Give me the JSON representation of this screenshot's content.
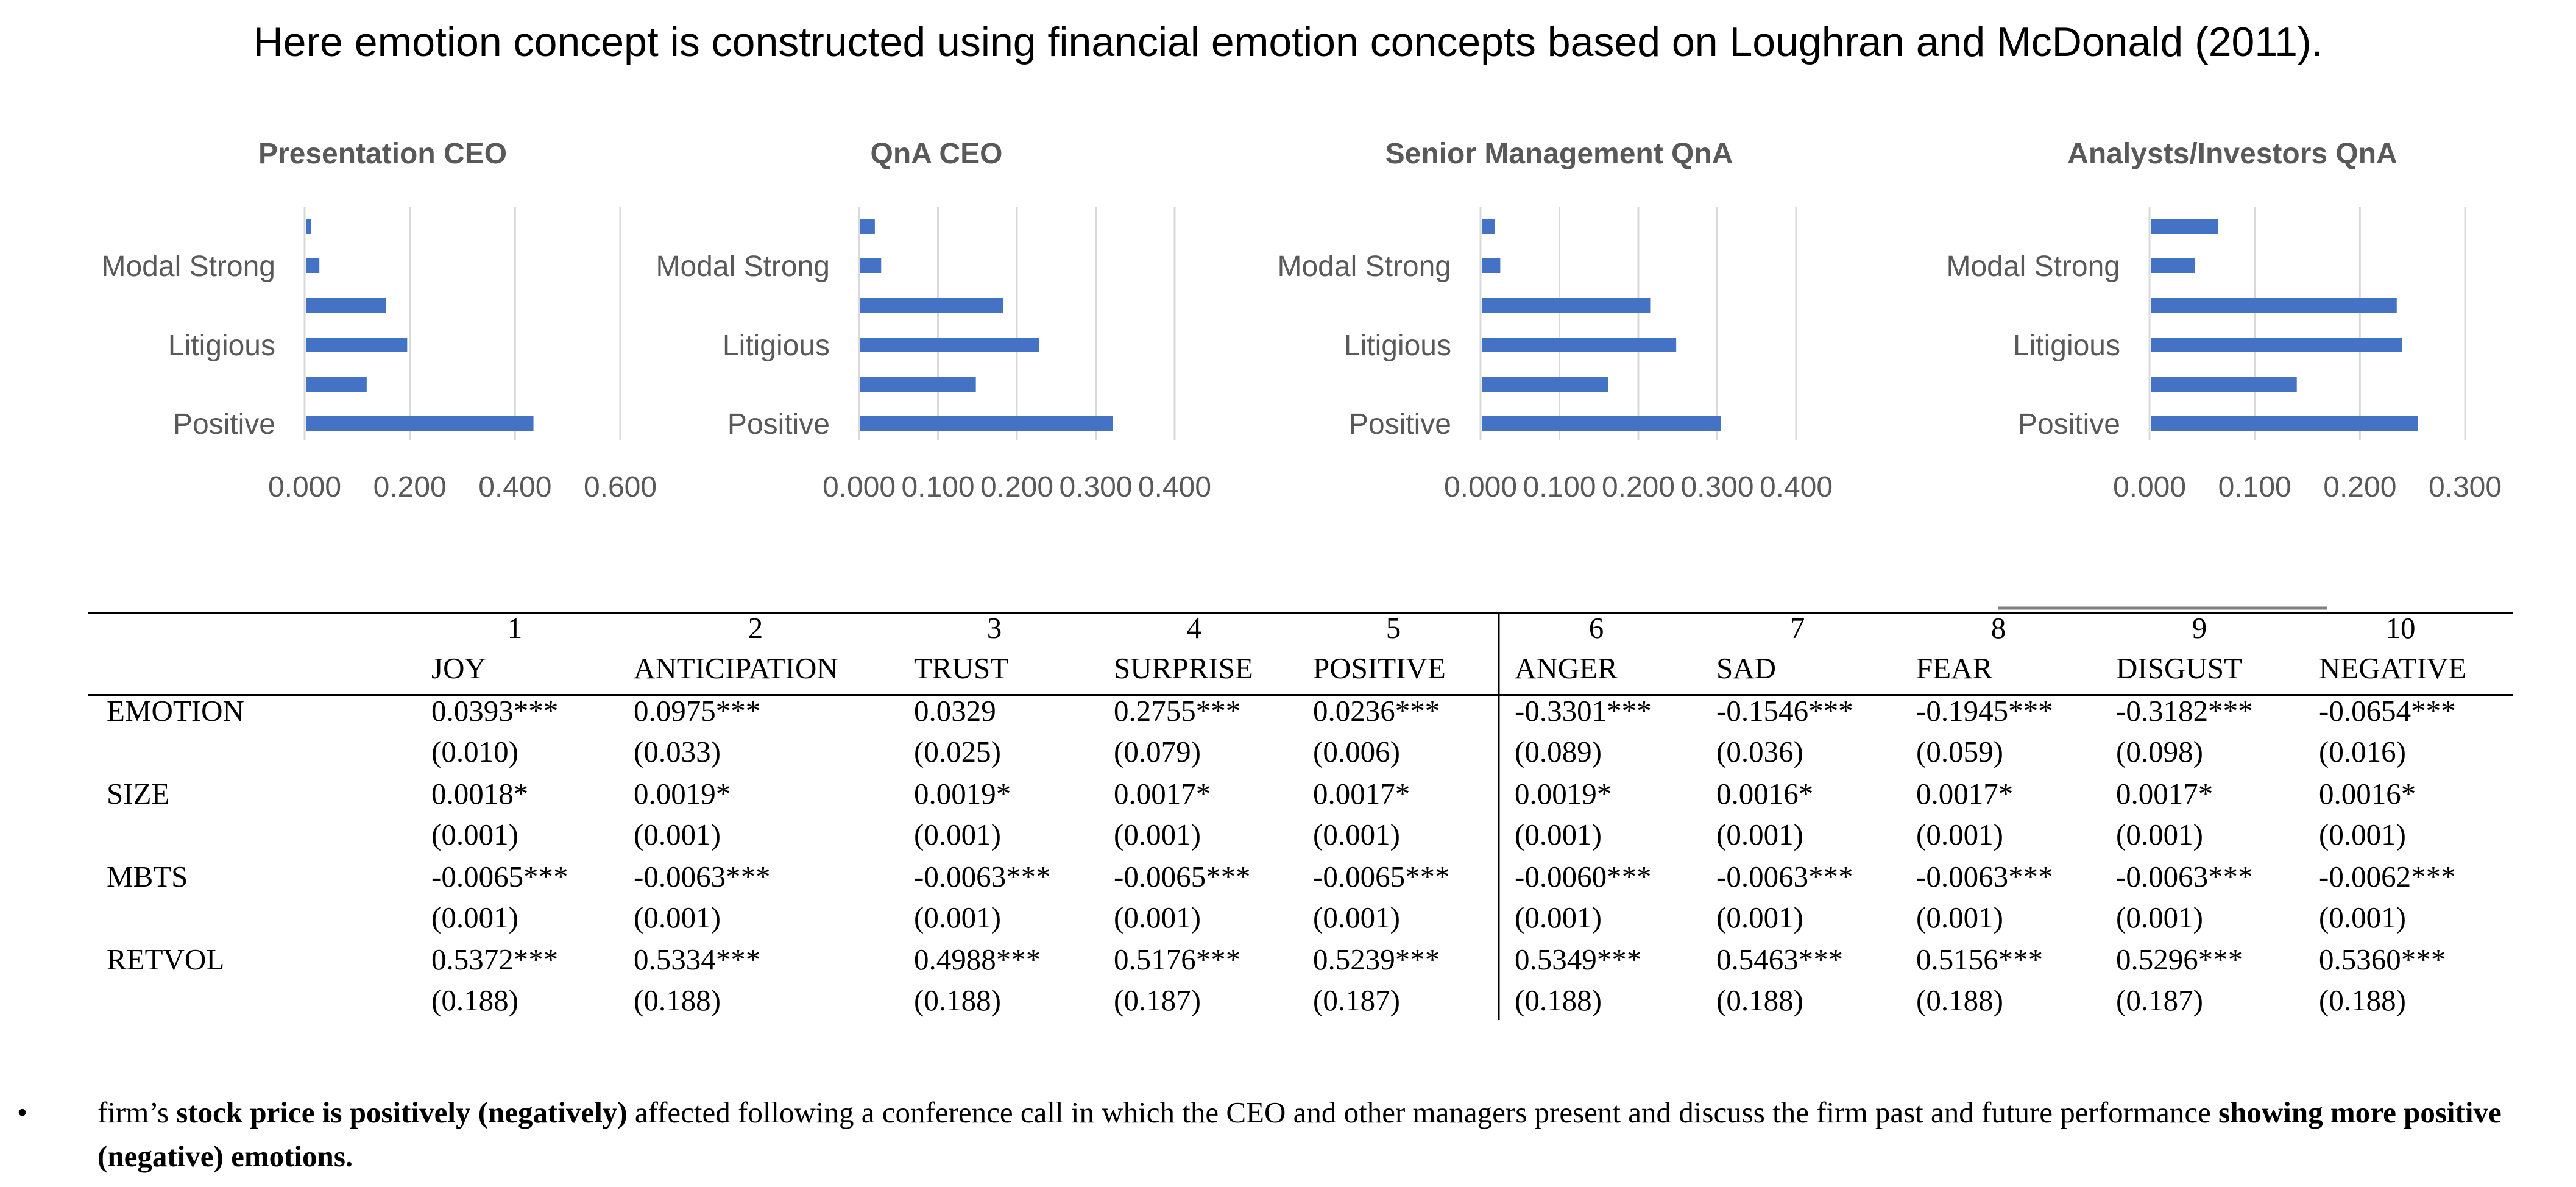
{
  "headline": "Here emotion concept is constructed using financial emotion concepts based on Loughran and McDonald (2011).",
  "chart_data": [
    {
      "type": "bar",
      "orientation": "horizontal",
      "title": "Presentation CEO",
      "visible_category_labels": [
        "Modal Strong",
        "Litigious",
        "Positive"
      ],
      "categories": [
        "",
        "Modal Strong",
        "",
        "Litigious",
        "",
        "Positive"
      ],
      "values": [
        0.012,
        0.028,
        0.155,
        0.195,
        0.118,
        0.435
      ],
      "xlim": [
        0,
        0.6
      ],
      "xticks": [
        "0.000",
        "0.200",
        "0.400",
        "0.600"
      ],
      "grid": true
    },
    {
      "type": "bar",
      "orientation": "horizontal",
      "title": "QnA CEO",
      "visible_category_labels": [
        "Modal Strong",
        "Litigious",
        "Positive"
      ],
      "categories": [
        "",
        "Modal Strong",
        "",
        "Litigious",
        "",
        "Positive"
      ],
      "values": [
        0.02,
        0.028,
        0.183,
        0.228,
        0.148,
        0.322
      ],
      "xlim": [
        0,
        0.4
      ],
      "xticks": [
        "0.000",
        "0.100",
        "0.200",
        "0.300",
        "0.400"
      ],
      "grid": true
    },
    {
      "type": "bar",
      "orientation": "horizontal",
      "title": "Senior Management QnA",
      "visible_category_labels": [
        "Modal Strong",
        "Litigious",
        "Positive"
      ],
      "categories": [
        "",
        "Modal Strong",
        "",
        "Litigious",
        "",
        "Positive"
      ],
      "values": [
        0.018,
        0.025,
        0.215,
        0.248,
        0.162,
        0.305
      ],
      "xlim": [
        0,
        0.4
      ],
      "xticks": [
        "0.000",
        "0.100",
        "0.200",
        "0.300",
        "0.400"
      ],
      "grid": true
    },
    {
      "type": "bar",
      "orientation": "horizontal",
      "title": "Analysts/Investors QnA",
      "visible_category_labels": [
        "Modal Strong",
        "Litigious",
        "Positive"
      ],
      "categories": [
        "",
        "Modal Strong",
        "",
        "Litigious",
        "",
        "Positive"
      ],
      "values": [
        0.065,
        0.043,
        0.235,
        0.24,
        0.14,
        0.255
      ],
      "xlim": [
        0,
        0.3
      ],
      "xticks": [
        "0.000",
        "0.100",
        "0.200",
        "0.300"
      ],
      "grid": true
    }
  ],
  "table": {
    "numbers": [
      "1",
      "2",
      "3",
      "4",
      "5",
      "6",
      "7",
      "8",
      "9",
      "10"
    ],
    "headers": [
      "JOY",
      "ANTICIPATION",
      "TRUST",
      "SURPRISE",
      "POSITIVE",
      "ANGER",
      "SAD",
      "FEAR",
      "DISGUST",
      "NEGATIVE"
    ],
    "rows": [
      {
        "label": "EMOTION",
        "coef": [
          "0.0393***",
          "0.0975***",
          "0.0329",
          "0.2755***",
          "0.0236***",
          "-0.3301***",
          "-0.1546***",
          "-0.1945***",
          "-0.3182***",
          "-0.0654***"
        ],
        "se": [
          "(0.010)",
          "(0.033)",
          "(0.025)",
          "(0.079)",
          "(0.006)",
          "(0.089)",
          "(0.036)",
          "(0.059)",
          "(0.098)",
          "(0.016)"
        ]
      },
      {
        "label": "SIZE",
        "coef": [
          "0.0018*",
          "0.0019*",
          "0.0019*",
          "0.0017*",
          "0.0017*",
          "0.0019*",
          "0.0016*",
          "0.0017*",
          "0.0017*",
          "0.0016*"
        ],
        "se": [
          "(0.001)",
          "(0.001)",
          "(0.001)",
          "(0.001)",
          "(0.001)",
          "(0.001)",
          "(0.001)",
          "(0.001)",
          "(0.001)",
          "(0.001)"
        ]
      },
      {
        "label": "MBTS",
        "coef": [
          "-0.0065***",
          "-0.0063***",
          "-0.0063***",
          "-0.0065***",
          "-0.0065***",
          "-0.0060***",
          "-0.0063***",
          "-0.0063***",
          "-0.0063***",
          "-0.0062***"
        ],
        "se": [
          "(0.001)",
          "(0.001)",
          "(0.001)",
          "(0.001)",
          "(0.001)",
          "(0.001)",
          "(0.001)",
          "(0.001)",
          "(0.001)",
          "(0.001)"
        ]
      },
      {
        "label": "RETVOL",
        "coef": [
          "0.5372***",
          "0.5334***",
          "0.4988***",
          "0.5176***",
          "0.5239***",
          "0.5349***",
          "0.5463***",
          "0.5156***",
          "0.5296***",
          "0.5360***"
        ],
        "se": [
          "(0.188)",
          "(0.188)",
          "(0.188)",
          "(0.187)",
          "(0.187)",
          "(0.188)",
          "(0.188)",
          "(0.188)",
          "(0.187)",
          "(0.188)"
        ]
      }
    ]
  },
  "note": {
    "bullet": "•",
    "part1": "firm’s ",
    "bold1": "stock price is positively (negatively)",
    "part2": " affected following a conference call in which the CEO and other managers present and discuss the firm past and future performance ",
    "bold2": "showing more positive (negative) emotions."
  },
  "colors": {
    "bar": "#4472c4",
    "text_gray": "#595959",
    "grid": "#d9d9d9"
  }
}
